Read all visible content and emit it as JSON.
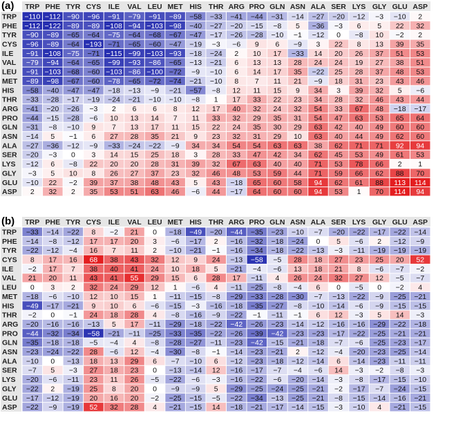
{
  "figure": {
    "panels": [
      {
        "label": "(a)"
      },
      {
        "label": "(b)"
      }
    ]
  },
  "chart_data": [
    {
      "type": "heatmap",
      "panel": "(a)",
      "rows": [
        "TRP",
        "PHE",
        "TYR",
        "CYS",
        "ILE",
        "VAL",
        "LEU",
        "MET",
        "HIS",
        "THR",
        "ARG",
        "PRO",
        "GLN",
        "ASN",
        "ALA",
        "SER",
        "LYS",
        "GLY",
        "GLU",
        "ASP"
      ],
      "columns": [
        "TRP",
        "PHE",
        "TYR",
        "CYS",
        "ILE",
        "VAL",
        "LEU",
        "MET",
        "HIS",
        "THR",
        "ARG",
        "PRO",
        "GLN",
        "ASN",
        "ALA",
        "SER",
        "LYS",
        "GLY",
        "GLU",
        "ASP"
      ],
      "values": [
        [
          -110,
          -112,
          -90,
          -96,
          -91,
          -79,
          -91,
          -89,
          -58,
          -33,
          -41,
          -44,
          -31,
          -14,
          -27,
          -20,
          -12,
          -3,
          -10,
          2
        ],
        [
          -112,
          -122,
          -89,
          -89,
          -108,
          -94,
          -103,
          -98,
          -40,
          -27,
          -20,
          -15,
          -8,
          5,
          -36,
          -3,
          6,
          5,
          22,
          32
        ],
        [
          -90,
          -89,
          -65,
          -64,
          -75,
          -64,
          -68,
          -67,
          -47,
          -17,
          -26,
          -28,
          -10,
          -1,
          -12,
          0,
          -8,
          10,
          -2,
          2
        ],
        [
          -96,
          -89,
          -64,
          -193,
          -71,
          -65,
          -60,
          -47,
          -19,
          -3,
          -6,
          9,
          6,
          -9,
          3,
          22,
          8,
          13,
          39,
          35
        ],
        [
          -91,
          -108,
          -75,
          -71,
          -115,
          -99,
          -103,
          -93,
          -18,
          -24,
          2,
          10,
          17,
          -33,
          14,
          20,
          26,
          37,
          51,
          53
        ],
        [
          -79,
          -94,
          -64,
          -65,
          -99,
          -93,
          -86,
          -65,
          -13,
          -21,
          6,
          13,
          13,
          28,
          24,
          24,
          19,
          27,
          38,
          51
        ],
        [
          -91,
          -103,
          -68,
          -60,
          -103,
          -86,
          -100,
          -72,
          -9,
          -10,
          6,
          14,
          17,
          35,
          -22,
          25,
          28,
          37,
          48,
          53
        ],
        [
          -89,
          -98,
          -67,
          -60,
          -78,
          -65,
          -72,
          -74,
          -21,
          -10,
          8,
          7,
          11,
          21,
          -9,
          18,
          31,
          23,
          43,
          46
        ],
        [
          -58,
          -40,
          -47,
          -47,
          -18,
          -13,
          -9,
          -21,
          -57,
          -8,
          12,
          11,
          15,
          9,
          34,
          3,
          39,
          32,
          5,
          -6
        ],
        [
          -33,
          -28,
          -17,
          -19,
          -24,
          -21,
          -10,
          -10,
          -8,
          1,
          17,
          33,
          22,
          23,
          34,
          28,
          32,
          46,
          43,
          44
        ],
        [
          -41,
          -20,
          -26,
          -3,
          2,
          6,
          6,
          8,
          12,
          17,
          40,
          32,
          24,
          32,
          54,
          33,
          67,
          48,
          -18,
          -17
        ],
        [
          -44,
          -15,
          -28,
          -6,
          10,
          13,
          14,
          7,
          11,
          33,
          32,
          29,
          35,
          31,
          54,
          47,
          63,
          53,
          65,
          64
        ],
        [
          -31,
          -8,
          -10,
          9,
          7,
          13,
          17,
          11,
          15,
          22,
          24,
          35,
          30,
          29,
          63,
          42,
          40,
          49,
          60,
          60
        ],
        [
          -14,
          5,
          -1,
          6,
          27,
          28,
          35,
          21,
          9,
          23,
          32,
          31,
          29,
          10,
          63,
          40,
          44,
          49,
          62,
          60
        ],
        [
          -27,
          -36,
          -12,
          -9,
          -33,
          -24,
          -22,
          -9,
          34,
          34,
          54,
          54,
          63,
          63,
          38,
          62,
          71,
          71,
          92,
          94
        ],
        [
          -20,
          -3,
          0,
          3,
          14,
          15,
          25,
          18,
          3,
          28,
          33,
          47,
          42,
          34,
          62,
          45,
          53,
          49,
          61,
          53
        ],
        [
          -12,
          6,
          -8,
          22,
          20,
          20,
          28,
          31,
          39,
          32,
          67,
          63,
          40,
          40,
          71,
          53,
          78,
          66,
          2,
          1
        ],
        [
          -3,
          5,
          10,
          8,
          26,
          27,
          37,
          23,
          32,
          46,
          48,
          53,
          59,
          44,
          71,
          59,
          66,
          62,
          88,
          70
        ],
        [
          -10,
          22,
          -2,
          39,
          37,
          38,
          48,
          43,
          5,
          43,
          -18,
          65,
          60,
          58,
          94,
          62,
          61,
          88,
          113,
          114
        ],
        [
          2,
          32,
          2,
          35,
          53,
          51,
          63,
          46,
          -6,
          44,
          -17,
          64,
          60,
          60,
          94,
          53,
          1,
          70,
          114,
          94
        ]
      ]
    },
    {
      "type": "heatmap",
      "panel": "(b)",
      "rows": [
        "TRP",
        "PHE",
        "TYR",
        "CYS",
        "ILE",
        "VAL",
        "LEU",
        "MET",
        "HIS",
        "THR",
        "ARG",
        "PRO",
        "GLN",
        "ASN",
        "ALA",
        "SER",
        "LYS",
        "GLY",
        "GLU",
        "ASP"
      ],
      "columns": [
        "TRP",
        "PHE",
        "TYR",
        "CYS",
        "ILE",
        "VAL",
        "LEU",
        "MET",
        "HIS",
        "THR",
        "ARG",
        "PRO",
        "GLN",
        "ASN",
        "ALA",
        "SER",
        "LYS",
        "GLY",
        "GLU",
        "ASP"
      ],
      "values": [
        [
          -33,
          -14,
          -22,
          8,
          -2,
          21,
          0,
          -18,
          -49,
          -20,
          -44,
          -35,
          -23,
          -10,
          -7,
          -20,
          -22,
          -17,
          -22,
          -14
        ],
        [
          -14,
          -8,
          -12,
          17,
          17,
          20,
          3,
          -6,
          -17,
          2,
          -16,
          -32,
          -18,
          -24,
          0,
          5,
          -6,
          2,
          -12,
          -9
        ],
        [
          -22,
          -12,
          -4,
          16,
          7,
          11,
          2,
          -10,
          -21,
          -1,
          -16,
          -34,
          -18,
          -22,
          -13,
          -3,
          -11,
          -19,
          -19,
          -19
        ],
        [
          8,
          17,
          16,
          68,
          38,
          43,
          32,
          12,
          9,
          24,
          -13,
          -58,
          -5,
          28,
          18,
          27,
          23,
          25,
          20,
          52
        ],
        [
          -2,
          17,
          7,
          38,
          40,
          41,
          24,
          10,
          18,
          5,
          -21,
          -4,
          -6,
          13,
          18,
          21,
          8,
          -6,
          -7,
          -2
        ],
        [
          21,
          20,
          11,
          43,
          41,
          55,
          29,
          15,
          6,
          28,
          17,
          -11,
          4,
          26,
          24,
          32,
          27,
          12,
          -5,
          -7
        ],
        [
          0,
          3,
          2,
          32,
          24,
          29,
          12,
          1,
          -6,
          4,
          -11,
          -25,
          -8,
          -4,
          6,
          0,
          -5,
          0,
          -2,
          4
        ],
        [
          -18,
          -6,
          -10,
          12,
          10,
          15,
          1,
          -11,
          -15,
          -8,
          -29,
          -33,
          -28,
          -30,
          -7,
          -13,
          -22,
          -9,
          -25,
          -21
        ],
        [
          -49,
          -17,
          -21,
          9,
          10,
          6,
          -6,
          -15,
          -3,
          -16,
          -18,
          -35,
          -27,
          -8,
          -10,
          -14,
          -6,
          -9,
          -15,
          -15
        ],
        [
          -2,
          0,
          -1,
          24,
          18,
          28,
          4,
          -8,
          -16,
          -9,
          -22,
          -1,
          -11,
          -1,
          6,
          12,
          -3,
          5,
          14,
          -3
        ],
        [
          -20,
          -16,
          -16,
          -13,
          5,
          17,
          -11,
          -29,
          -18,
          -22,
          -42,
          -26,
          -23,
          -14,
          -12,
          -16,
          -16,
          -29,
          -22,
          -18
        ],
        [
          -44,
          -32,
          -34,
          -58,
          -21,
          -11,
          -25,
          -33,
          -35,
          -22,
          -26,
          -39,
          -42,
          -23,
          -23,
          -17,
          -22,
          -25,
          -21,
          -21
        ],
        [
          -35,
          -18,
          -18,
          -5,
          -4,
          4,
          -8,
          -28,
          -27,
          -11,
          -23,
          -42,
          -15,
          -21,
          -18,
          -7,
          -6,
          -25,
          -23,
          -17
        ],
        [
          -23,
          -24,
          -22,
          28,
          -6,
          12,
          -4,
          -30,
          -8,
          -1,
          -14,
          -23,
          -21,
          2,
          -12,
          -4,
          -20,
          -23,
          -25,
          -14
        ],
        [
          -10,
          0,
          -13,
          18,
          13,
          29,
          6,
          -7,
          -10,
          6,
          -12,
          -23,
          -18,
          -12,
          -14,
          6,
          -14,
          -23,
          -11,
          -11
        ],
        [
          -7,
          5,
          -3,
          27,
          18,
          23,
          0,
          -13,
          -14,
          12,
          -16,
          -17,
          -7,
          -4,
          -6,
          14,
          -3,
          -2,
          -8,
          -3
        ],
        [
          -20,
          -6,
          -11,
          23,
          11,
          26,
          -5,
          -22,
          -6,
          -3,
          -16,
          -22,
          -6,
          -20,
          -14,
          -3,
          -8,
          -17,
          -15,
          -10
        ],
        [
          -22,
          2,
          -19,
          25,
          8,
          20,
          0,
          -9,
          -9,
          5,
          -29,
          -25,
          -24,
          -25,
          -21,
          -2,
          -17,
          -7,
          -24,
          -15
        ],
        [
          -17,
          -12,
          -19,
          20,
          16,
          20,
          -2,
          -25,
          -15,
          -5,
          -22,
          -34,
          -13,
          -25,
          -21,
          -8,
          -15,
          -14,
          -16,
          -21
        ],
        [
          -22,
          -9,
          -19,
          52,
          32,
          28,
          4,
          -21,
          -15,
          14,
          -18,
          -21,
          -17,
          -14,
          -15,
          -3,
          -10,
          4,
          -21,
          -15
        ]
      ]
    }
  ]
}
